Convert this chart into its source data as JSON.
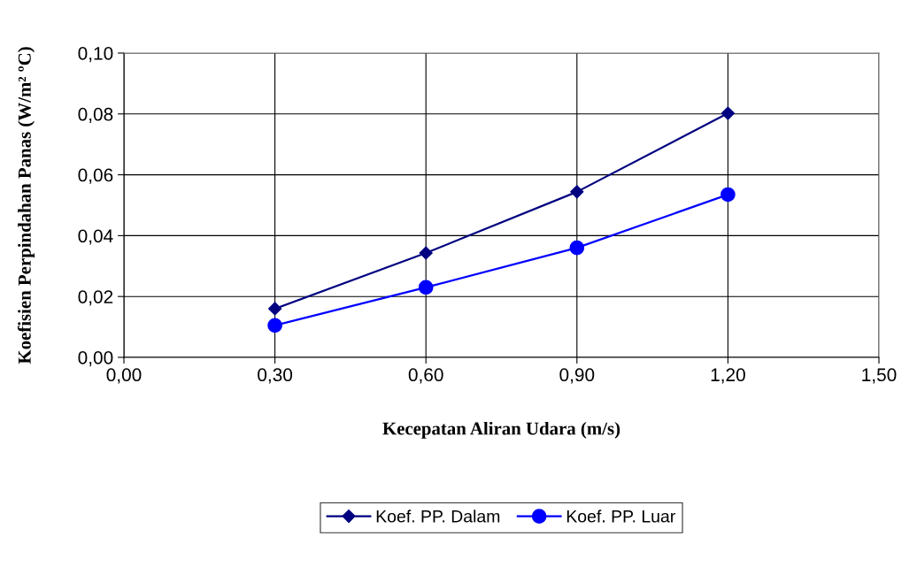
{
  "chart_data": {
    "type": "line",
    "xlabel": "Kecepatan Aliran Udara (m/s)",
    "ylabel": "Koefisien Perpindahan Panas (W/m² ºC)",
    "x": [
      0.3,
      0.6,
      0.9,
      1.2
    ],
    "series": [
      {
        "name": "Koef. PP. Dalam",
        "color": "#000080",
        "marker": "diamond",
        "values": [
          0.016,
          0.0343,
          0.0544,
          0.0802
        ]
      },
      {
        "name": "Koef. PP. Luar",
        "color": "#0000ff",
        "marker": "circle",
        "values": [
          0.0105,
          0.023,
          0.036,
          0.0535
        ]
      }
    ],
    "xlim": [
      0,
      1.5
    ],
    "xticks": [
      {
        "value": 0,
        "label": "0,00"
      },
      {
        "value": 0.3,
        "label": "0,30"
      },
      {
        "value": 0.6,
        "label": "0,60"
      },
      {
        "value": 0.9,
        "label": "0,90"
      },
      {
        "value": 1.2,
        "label": "1,20"
      },
      {
        "value": 1.5,
        "label": "1,50"
      }
    ],
    "ylim": [
      0,
      0.1
    ],
    "yticks": [
      {
        "value": 0,
        "label": "0,00"
      },
      {
        "value": 0.02,
        "label": "0,02"
      },
      {
        "value": 0.04,
        "label": "0,04"
      },
      {
        "value": 0.06,
        "label": "0,06"
      },
      {
        "value": 0.08,
        "label": "0,08"
      },
      {
        "value": 0.1,
        "label": "0,10"
      }
    ],
    "grid": true,
    "legend": "bottom",
    "line_style": "solid"
  }
}
